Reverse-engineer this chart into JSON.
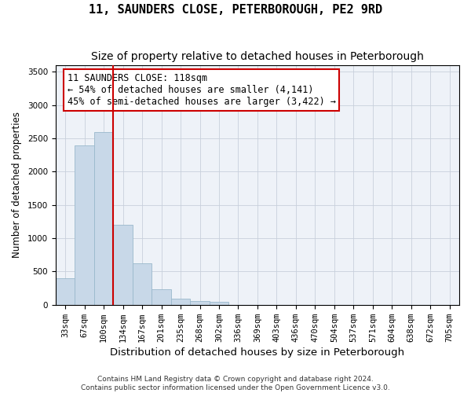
{
  "title": "11, SAUNDERS CLOSE, PETERBOROUGH, PE2 9RD",
  "subtitle": "Size of property relative to detached houses in Peterborough",
  "xlabel": "Distribution of detached houses by size in Peterborough",
  "ylabel": "Number of detached properties",
  "footer_line1": "Contains HM Land Registry data © Crown copyright and database right 2024.",
  "footer_line2": "Contains public sector information licensed under the Open Government Licence v3.0.",
  "bin_labels": [
    "33sqm",
    "67sqm",
    "100sqm",
    "134sqm",
    "167sqm",
    "201sqm",
    "235sqm",
    "268sqm",
    "302sqm",
    "336sqm",
    "369sqm",
    "403sqm",
    "436sqm",
    "470sqm",
    "504sqm",
    "537sqm",
    "571sqm",
    "604sqm",
    "638sqm",
    "672sqm",
    "705sqm"
  ],
  "bar_heights": [
    400,
    2400,
    2600,
    1200,
    620,
    240,
    90,
    60,
    50,
    0,
    0,
    0,
    0,
    0,
    0,
    0,
    0,
    0,
    0,
    0,
    0
  ],
  "bar_color": "#c8d8e8",
  "bar_edge_color": "#9ab8cc",
  "grid_color": "#c8d0dc",
  "axes_bg_color": "#eef2f8",
  "red_line_x": 2.5,
  "red_line_color": "#cc0000",
  "annotation_text": "11 SAUNDERS CLOSE: 118sqm\n← 54% of detached houses are smaller (4,141)\n45% of semi-detached houses are larger (3,422) →",
  "annotation_box_facecolor": "#ffffff",
  "annotation_box_edgecolor": "#cc0000",
  "ylim": [
    0,
    3600
  ],
  "yticks": [
    0,
    500,
    1000,
    1500,
    2000,
    2500,
    3000,
    3500
  ],
  "title_fontsize": 11,
  "subtitle_fontsize": 10,
  "annotation_fontsize": 8.5,
  "xlabel_fontsize": 9.5,
  "ylabel_fontsize": 8.5,
  "tick_fontsize": 7.5,
  "footer_fontsize": 6.5
}
